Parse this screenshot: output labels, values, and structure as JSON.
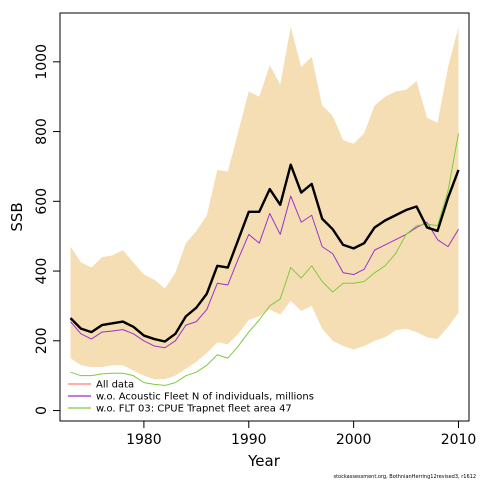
{
  "chart_data": {
    "type": "line",
    "title": "",
    "xlabel": "Year",
    "ylabel": "SSB",
    "xlim": [
      1972,
      2011
    ],
    "ylim": [
      -30,
      1140
    ],
    "x_ticks": [
      1980,
      1990,
      2000,
      2010
    ],
    "y_ticks": [
      0,
      200,
      400,
      600,
      800,
      1000
    ],
    "grid": false,
    "legend_position": "bottom-left",
    "caption": "stockassessment.org, BothnianHerring12revised3, r1612",
    "band": {
      "name": "All data confidence interval",
      "color": "#F5DEB3",
      "x": [
        1973,
        1974,
        1975,
        1976,
        1977,
        1978,
        1979,
        1980,
        1981,
        1982,
        1983,
        1984,
        1985,
        1986,
        1987,
        1988,
        1989,
        1990,
        1991,
        1992,
        1993,
        1994,
        1995,
        1996,
        1997,
        1998,
        1999,
        2000,
        2001,
        2002,
        2003,
        2004,
        2005,
        2006,
        2007,
        2008,
        2009,
        2010
      ],
      "lower": [
        150,
        130,
        125,
        125,
        130,
        130,
        115,
        100,
        90,
        90,
        100,
        120,
        140,
        165,
        195,
        190,
        220,
        260,
        270,
        290,
        275,
        315,
        285,
        300,
        235,
        200,
        185,
        175,
        185,
        200,
        210,
        230,
        235,
        225,
        210,
        205,
        240,
        280
      ],
      "upper": [
        470,
        425,
        410,
        440,
        445,
        460,
        425,
        390,
        375,
        350,
        395,
        480,
        515,
        560,
        690,
        685,
        800,
        915,
        900,
        990,
        935,
        1100,
        985,
        1015,
        875,
        845,
        775,
        765,
        795,
        875,
        900,
        915,
        920,
        945,
        840,
        825,
        985,
        1100
      ]
    },
    "series": [
      {
        "name": "All data",
        "color": "#000000",
        "legend_color": "#FA8072",
        "width": 2.4,
        "values": [
          265,
          235,
          225,
          245,
          250,
          255,
          240,
          215,
          205,
          198,
          220,
          270,
          295,
          335,
          415,
          410,
          490,
          570,
          570,
          635,
          590,
          705,
          625,
          650,
          550,
          520,
          475,
          465,
          480,
          525,
          545,
          560,
          575,
          585,
          525,
          515,
          610,
          690
        ]
      },
      {
        "name": "w.o. Acoustic Fleet  N of individuals, millions",
        "color": "#9932CC",
        "legend_color": "#9932CC",
        "width": 1,
        "values": [
          255,
          220,
          205,
          225,
          228,
          232,
          220,
          200,
          185,
          180,
          200,
          245,
          255,
          290,
          365,
          360,
          435,
          505,
          480,
          565,
          505,
          615,
          540,
          560,
          470,
          450,
          395,
          390,
          405,
          460,
          475,
          490,
          505,
          525,
          540,
          490,
          470,
          520
        ]
      },
      {
        "name": "w.o. FLT 03: CPUE Trapnet fleet area 47",
        "color": "#7CCD3C",
        "legend_color": "#7CCD3C",
        "width": 1,
        "values": [
          110,
          100,
          100,
          105,
          107,
          107,
          100,
          80,
          75,
          72,
          80,
          100,
          110,
          130,
          160,
          150,
          185,
          225,
          260,
          300,
          320,
          410,
          380,
          415,
          370,
          340,
          365,
          365,
          370,
          395,
          415,
          450,
          505,
          530,
          535,
          530,
          630,
          795
        ]
      }
    ]
  }
}
